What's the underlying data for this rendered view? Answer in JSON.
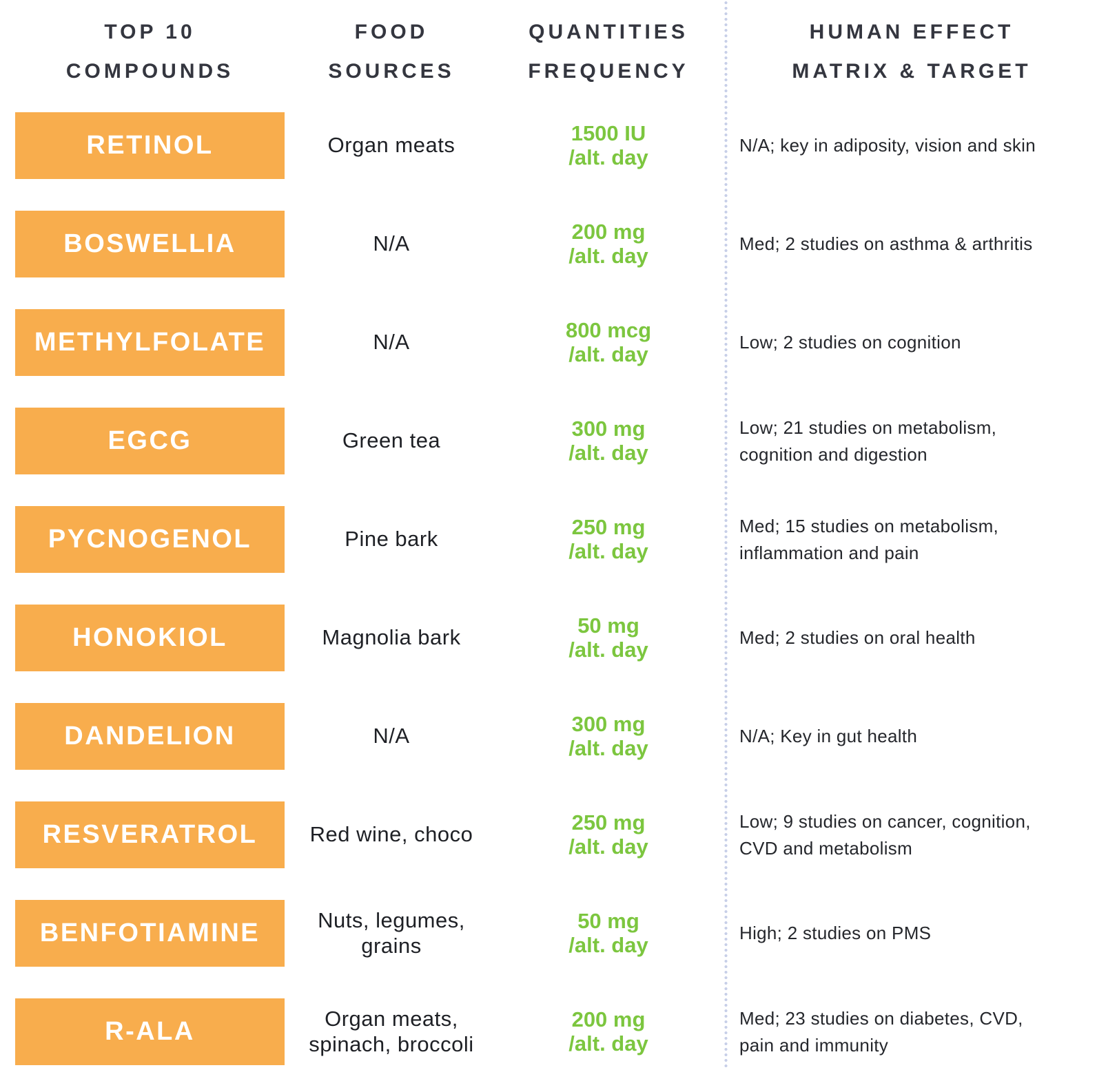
{
  "headers": {
    "compounds": "TOP 10\nCOMPOUNDS",
    "food_sources": "FOOD\nSOURCES",
    "quantities": "QUANTITIES\nFREQUENCY",
    "effect": "HUMAN EFFECT\nMATRIX & TARGET"
  },
  "colors": {
    "badge_orange": "#F8AD4D",
    "quantity_green": "#7CC63F",
    "divider_dot_blue": "#C7CFE8",
    "heading_text": "#34363F",
    "body_text": "#25272C",
    "badge_label": "#FFFFFF"
  },
  "rows": [
    {
      "compound": "RETINOL",
      "food": "Organ meats",
      "amount": "1500 IU",
      "freq": "/alt. day",
      "effect": "N/A; key in adiposity, vision and skin"
    },
    {
      "compound": "BOSWELLIA",
      "food": "N/A",
      "amount": "200 mg",
      "freq": "/alt. day",
      "effect": "Med; 2 studies on asthma & arthritis"
    },
    {
      "compound": "METHYLFOLATE",
      "food": "N/A",
      "amount": "800 mcg",
      "freq": "/alt. day",
      "effect": "Low; 2 studies on cognition"
    },
    {
      "compound": "EGCG",
      "food": "Green tea",
      "amount": "300 mg",
      "freq": "/alt. day",
      "effect": "Low; 21 studies on metabolism,\ncognition and digestion"
    },
    {
      "compound": "PYCNOGENOL",
      "food": "Pine bark",
      "amount": "250 mg",
      "freq": "/alt. day",
      "effect": "Med; 15 studies on metabolism,\ninflammation and pain"
    },
    {
      "compound": "HONOKIOL",
      "food": "Magnolia bark",
      "amount": "50 mg",
      "freq": "/alt. day",
      "effect": "Med; 2 studies on oral health"
    },
    {
      "compound": "DANDELION",
      "food": "N/A",
      "amount": "300 mg",
      "freq": "/alt. day",
      "effect": "N/A; Key in gut health"
    },
    {
      "compound": "RESVERATROL",
      "food": "Red wine, choco",
      "amount": "250 mg",
      "freq": "/alt. day",
      "effect": "Low; 9 studies on cancer, cognition,\nCVD and metabolism"
    },
    {
      "compound": "BENFOTIAMINE",
      "food": "Nuts, legumes,\ngrains",
      "amount": "50 mg",
      "freq": "/alt. day",
      "effect": "High; 2 studies on PMS"
    },
    {
      "compound": "R-ALA",
      "food": "Organ meats,\nspinach, broccoli",
      "amount": "200 mg",
      "freq": "/alt. day",
      "effect": "Med; 23 studies on diabetes, CVD,\npain and immunity"
    }
  ],
  "chart_data": {
    "type": "table",
    "columns": [
      "TOP 10 COMPOUNDS",
      "FOOD SOURCES",
      "QUANTITIES FREQUENCY",
      "HUMAN EFFECT MATRIX & TARGET"
    ],
    "rows": [
      [
        "RETINOL",
        "Organ meats",
        "1500 IU /alt. day",
        "N/A; key in adiposity, vision and skin"
      ],
      [
        "BOSWELLIA",
        "N/A",
        "200 mg /alt. day",
        "Med; 2 studies on asthma & arthritis"
      ],
      [
        "METHYLFOLATE",
        "N/A",
        "800 mcg /alt. day",
        "Low; 2 studies on cognition"
      ],
      [
        "EGCG",
        "Green tea",
        "300 mg /alt. day",
        "Low; 21 studies on metabolism, cognition and digestion"
      ],
      [
        "PYCNOGENOL",
        "Pine bark",
        "250 mg /alt. day",
        "Med; 15 studies on metabolism, inflammation and pain"
      ],
      [
        "HONOKIOL",
        "Magnolia bark",
        "50 mg /alt. day",
        "Med; 2 studies on oral health"
      ],
      [
        "DANDELION",
        "N/A",
        "300 mg /alt. day",
        "N/A; Key in gut health"
      ],
      [
        "RESVERATROL",
        "Red wine, choco",
        "250 mg /alt. day",
        "Low; 9 studies on cancer, cognition, CVD and metabolism"
      ],
      [
        "BENFOTIAMINE",
        "Nuts, legumes, grains",
        "50 mg /alt. day",
        "High; 2 studies on PMS"
      ],
      [
        "R-ALA",
        "Organ meats, spinach, broccoli",
        "200 mg /alt. day",
        "Med; 23 studies on diabetes, CVD, pain and immunity"
      ]
    ]
  }
}
